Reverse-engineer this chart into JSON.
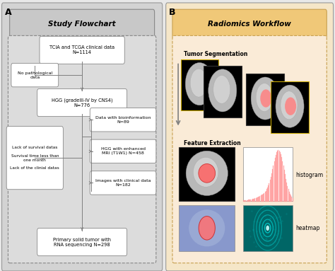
{
  "panel_a_title": "Study Flowchart",
  "panel_b_title": "Radiomics Workflow",
  "panel_a_bg": "#d3d3d3",
  "panel_b_bg": "#f5e6c8",
  "title_box_a_bg": "#c8c8c8",
  "title_box_b_bg": "#f0c878",
  "flowchart_bg": "#dcdcdc",
  "radiomics_inner_bg": "#faebd7",
  "box_bg": "#ffffff",
  "box_edge": "#808080",
  "font_size_title": 7.5,
  "font_size_box": 4.8,
  "font_size_label": 5.5,
  "font_size_section": 5.5,
  "tumor_seg_label": "Tumor Segmentation",
  "feature_ext_label": "Feature Extraction",
  "histogram_label": "histogram",
  "heatmap_label": "heatmap",
  "line_color": "#808080"
}
